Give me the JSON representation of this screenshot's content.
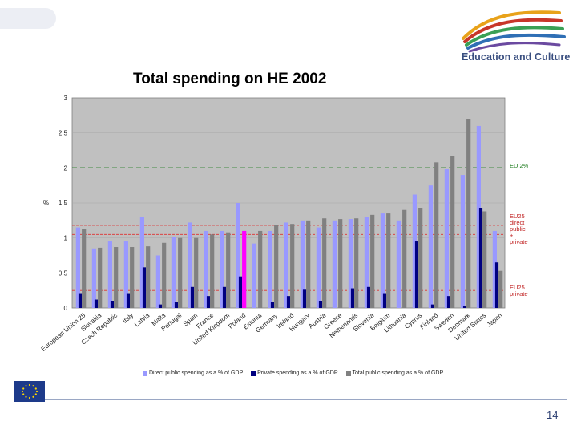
{
  "header": {
    "brand_text": "Education and Culture",
    "page_number": "14"
  },
  "colors": {
    "direct": "#9999ff",
    "private": "#000080",
    "total": "#808080",
    "highlight": "#ff00ff",
    "eu2_line": "#1a7a1a",
    "ref_line": "#e03030",
    "plot_bg": "#c0c0c0"
  },
  "chart_data": {
    "type": "bar",
    "title": "Total spending on HE 2002",
    "ylabel": "%",
    "ylim": [
      0,
      3
    ],
    "yticks": [
      "0",
      "0,5",
      "1",
      "1,5",
      "2",
      "2,5",
      "3"
    ],
    "ytick_values": [
      0,
      0.5,
      1,
      1.5,
      2,
      2.5,
      3
    ],
    "categories": [
      "European Union 25",
      "Slovakia",
      "Czech Republic",
      "Italy",
      "Latvia",
      "Malta",
      "Portugal",
      "Spain",
      "France",
      "United Kingdom",
      "Poland",
      "Estonia",
      "Germany",
      "Ireland",
      "Hungary",
      "Austria",
      "Greece",
      "Netherlands",
      "Slovenia",
      "Belgium",
      "Lithuania",
      "Cyprus",
      "Finland",
      "Sweden",
      "Denmark",
      "United States",
      "Japan"
    ],
    "highlight_category": "Poland",
    "series": [
      {
        "name": "Direct public spending as a % of GDP",
        "values": [
          1.15,
          0.85,
          0.95,
          0.95,
          1.3,
          0.75,
          1.02,
          1.22,
          1.1,
          1.1,
          1.5,
          0.92,
          1.1,
          1.22,
          1.25,
          1.15,
          1.25,
          1.27,
          1.3,
          1.35,
          1.25,
          1.62,
          1.75,
          1.98,
          1.9,
          2.6,
          1.1
        ]
      },
      {
        "name": "Private spending as a % of GDP",
        "values": [
          0.2,
          0.12,
          0.1,
          0.2,
          0.58,
          0.05,
          0.08,
          0.3,
          0.17,
          0.3,
          0.45,
          0.0,
          0.08,
          0.17,
          0.26,
          0.1,
          0.0,
          0.28,
          0.3,
          0.2,
          0.0,
          0.95,
          0.05,
          0.17,
          0.03,
          1.42,
          0.65
        ]
      },
      {
        "name": "Total public spending as a % of GDP",
        "values": [
          1.13,
          0.86,
          0.87,
          0.87,
          0.88,
          0.93,
          1.0,
          1.0,
          1.05,
          1.08,
          1.1,
          1.1,
          1.18,
          1.2,
          1.25,
          1.28,
          1.27,
          1.28,
          1.33,
          1.35,
          1.4,
          1.43,
          2.08,
          2.17,
          2.7,
          1.38,
          0.53
        ]
      }
    ],
    "reference_lines": [
      {
        "value": 2.0,
        "label": "EU 2%",
        "style": "green-dashed"
      },
      {
        "value": 1.18,
        "label": "EU25 direct public + private",
        "style": "red-dashed"
      },
      {
        "value": 1.05,
        "label": "",
        "style": "red-dashed"
      },
      {
        "value": 0.25,
        "label": "EU25 private",
        "style": "red-dashed"
      }
    ],
    "legend_position": "bottom"
  }
}
